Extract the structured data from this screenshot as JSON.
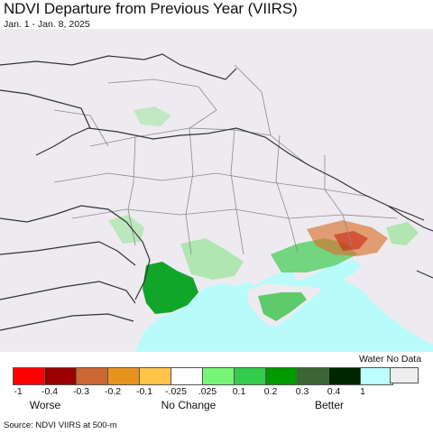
{
  "header": {
    "title": "NDVI Departure from Previous Year (VIIRS)",
    "subtitle": "Jan. 1 - Jan. 8, 2025"
  },
  "legend": {
    "water_no_data_label": "Water No Data",
    "swatches": [
      {
        "color": "#ff0000"
      },
      {
        "color": "#990000"
      },
      {
        "color": "#cc6633"
      },
      {
        "color": "#e8921e"
      },
      {
        "color": "#ffc34a"
      },
      {
        "color": "#ffffff"
      },
      {
        "color": "#76f576"
      },
      {
        "color": "#33cc4d"
      },
      {
        "color": "#009900"
      },
      {
        "color": "#3b6633"
      },
      {
        "color": "#002600"
      },
      {
        "color": "#bbffff"
      }
    ],
    "water_color": "#eeeeee",
    "ticks": [
      "-1",
      "-0.4",
      "-0.3",
      "-0.2",
      "-0.1",
      "-.025",
      ".025",
      "0.1",
      "0.2",
      "0.3",
      "0.4",
      "1"
    ],
    "categories": {
      "worse": "Worse",
      "no_change": "No Change",
      "better": "Better"
    }
  },
  "map_colors": {
    "land": "#eeebf0",
    "sea": "#b8fbfb",
    "border": "#333333",
    "admin": "#8a8a8a"
  },
  "source": "Source: NDVI VIIRS at 500-m"
}
